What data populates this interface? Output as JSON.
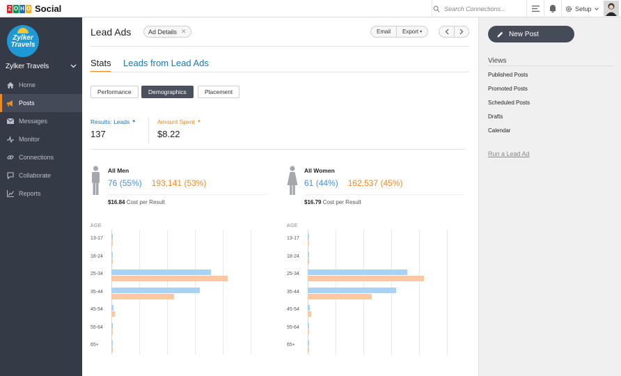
{
  "topbar": {
    "brand": "Social",
    "zoho_letters": [
      "Z",
      "O",
      "H",
      "O"
    ],
    "zoho_colors": [
      "#e42527",
      "#089949",
      "#226db4",
      "#f9b21d"
    ],
    "search_placeholder": "Search Connections...",
    "setup_label": "Setup"
  },
  "sidebar": {
    "org_logo_line1": "Zylker",
    "org_logo_line2": "Travels",
    "org_name": "Zylker Travels",
    "items": [
      {
        "label": "Home",
        "icon": "home-icon"
      },
      {
        "label": "Posts",
        "icon": "megaphone-icon",
        "active": true
      },
      {
        "label": "Messages",
        "icon": "envelope-icon"
      },
      {
        "label": "Monitor",
        "icon": "pulse-icon"
      },
      {
        "label": "Connections",
        "icon": "link-icon"
      },
      {
        "label": "Collaborate",
        "icon": "chat-icon"
      },
      {
        "label": "Reports",
        "icon": "chart-icon"
      }
    ]
  },
  "header": {
    "title": "Lead Ads",
    "chip": "Ad Details",
    "email": "Email",
    "export": "Export"
  },
  "tabs": {
    "stats": "Stats",
    "leads": "Leads from Lead Ads"
  },
  "segments": [
    "Performance",
    "Demographics",
    "Placement"
  ],
  "metrics": {
    "results_label": "Results: Leads",
    "results_value": "137",
    "amount_label": "Amount Spent",
    "amount_value": "$8.22"
  },
  "men": {
    "title": "All Men",
    "leads": "76",
    "leads_pct": "(55%)",
    "reach": "193,141",
    "reach_pct": "(53%)",
    "cost": "$16.84",
    "cost_label": "Cost per Result"
  },
  "women": {
    "title": "All Women",
    "leads": "61",
    "leads_pct": "(44%)",
    "reach": "162,537",
    "reach_pct": "(45%)",
    "cost": "$16.79",
    "cost_label": "Cost per Result"
  },
  "chart_data": [
    {
      "type": "bar",
      "title": "All Men",
      "xlabel": "",
      "ylabel": "AGE",
      "categories": [
        "13-17",
        "18-24",
        "25-34",
        "35-44",
        "45-54",
        "55-64",
        "65+"
      ],
      "series": [
        {
          "values": [
            0,
            0,
            43,
            38,
            1,
            0,
            0
          ],
          "color": "#a9d3f5"
        },
        {
          "values": [
            0,
            0,
            50,
            27,
            1.5,
            0,
            0
          ],
          "color": "#fbc8a2"
        }
      ],
      "xlim": [
        0,
        60
      ],
      "grid": true
    },
    {
      "type": "bar",
      "title": "All Women",
      "xlabel": "",
      "ylabel": "AGE",
      "categories": [
        "13-17",
        "18-24",
        "25-34",
        "35-44",
        "45-54",
        "55-64",
        "65+"
      ],
      "series": [
        {
          "values": [
            0,
            0,
            43,
            38,
            1,
            0,
            0
          ],
          "color": "#a9d3f5"
        },
        {
          "values": [
            0,
            0,
            50,
            27.5,
            1.5,
            0,
            0
          ],
          "color": "#fbc8a2"
        }
      ],
      "xlim": [
        0,
        60
      ],
      "grid": true
    }
  ],
  "right": {
    "new_post": "New Post",
    "views_title": "Views",
    "views": [
      "Published Posts",
      "Promoted Posts",
      "Scheduled Posts",
      "Drafts",
      "Calendar"
    ],
    "run_ad": "Run a Lead Ad"
  }
}
